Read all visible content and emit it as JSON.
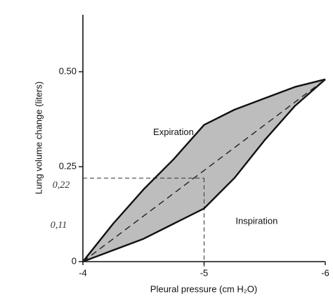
{
  "chart_data": {
    "type": "line",
    "x_label": "Pleural pressure (cm H₂O)",
    "y_label": "Lung volume change (liters)",
    "x": [
      -4,
      -4.25,
      -4.5,
      -4.75,
      -5,
      -5.25,
      -5.5,
      -5.75,
      -6
    ],
    "series": [
      {
        "name": "Expiration",
        "color": "#111111",
        "values": [
          0,
          0.1,
          0.19,
          0.27,
          0.36,
          0.4,
          0.43,
          0.46,
          0.48
        ]
      },
      {
        "name": "Inspiration",
        "color": "#111111",
        "values": [
          0,
          0.03,
          0.06,
          0.1,
          0.14,
          0.22,
          0.32,
          0.41,
          0.48
        ]
      },
      {
        "color": "#222222",
        "dashed": true,
        "values": [
          0,
          0.06,
          0.12,
          0.18,
          0.24,
          0.3,
          0.36,
          0.42,
          0.48
        ]
      }
    ],
    "fill_color": "#bdbdbd",
    "xlim": [
      -4,
      -6
    ],
    "xticks": [
      -4,
      -5,
      -6
    ],
    "ylim": [
      0,
      0.65
    ],
    "yticks": [
      0,
      0.25,
      {
        "value": 0.5,
        "label": "0.50"
      }
    ],
    "reference": {
      "x": -5,
      "y": 0.22
    },
    "annotations": [
      {
        "text": "Expiration",
        "x": -4.58,
        "y": 0.34
      },
      {
        "text": "Inspiration",
        "x": -5.26,
        "y": 0.105
      },
      {
        "text": "0,22",
        "x": -3.82,
        "y": 0.2,
        "handwritten": true
      },
      {
        "text": "0,11",
        "x": -3.8,
        "y": 0.095,
        "handwritten": true
      }
    ]
  }
}
